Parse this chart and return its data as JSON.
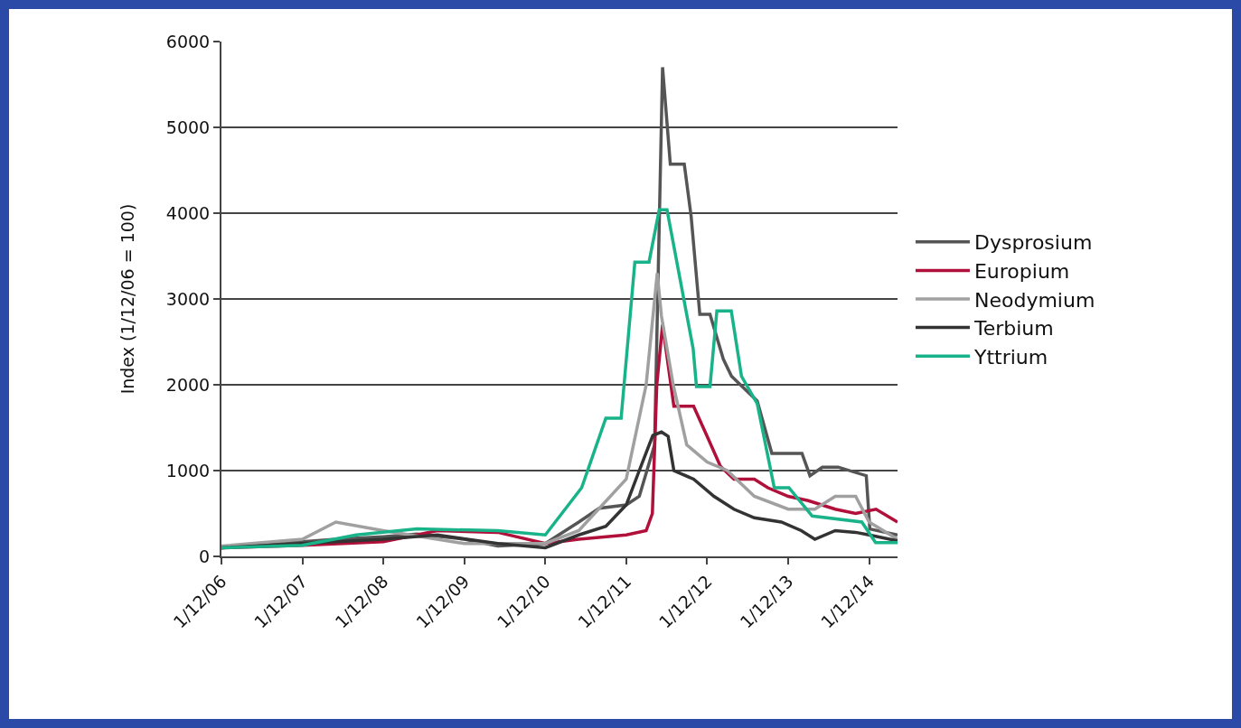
{
  "chart_data": {
    "type": "line",
    "ylabel": "Index (1/12/06 = 100)",
    "xlim": [
      "2006-01-12",
      "2014-05-20"
    ],
    "xticks": [
      {
        "value": "2006-01-12",
        "label": "1/12/06"
      },
      {
        "value": "2007-01-12",
        "label": "1/12/07"
      },
      {
        "value": "2008-01-12",
        "label": "1/12/08"
      },
      {
        "value": "2009-01-12",
        "label": "1/12/09"
      },
      {
        "value": "2010-01-12",
        "label": "1/12/10"
      },
      {
        "value": "2011-01-12",
        "label": "1/12/11"
      },
      {
        "value": "2012-01-12",
        "label": "1/12/12"
      },
      {
        "value": "2013-01-12",
        "label": "1/12/13"
      },
      {
        "value": "2014-01-12",
        "label": "1/12/14"
      }
    ],
    "ylim": [
      0,
      6000
    ],
    "yticks": [
      0,
      1000,
      2000,
      3000,
      4000,
      5000,
      6000
    ],
    "grid": "y",
    "legend": "right",
    "line_style": "solid",
    "marker": "none",
    "series": [
      {
        "name": "Dysprosium",
        "color": "#555555",
        "x": [
          "2006-01-12",
          "2007-01-12",
          "2007-06-12",
          "2008-01-12",
          "2008-06-12",
          "2009-01-12",
          "2009-06-12",
          "2010-01-12",
          "2010-06-12",
          "2010-09-12",
          "2011-01-12",
          "2011-03-12",
          "2011-05-20",
          "2011-06-25",
          "2011-07-30",
          "2011-10-01",
          "2011-11-01",
          "2011-12-10",
          "2012-01-25",
          "2012-03-25",
          "2012-05-01",
          "2012-08-25",
          "2012-10-30",
          "2013-03-15",
          "2013-04-20",
          "2013-06-15",
          "2013-08-25",
          "2013-12-30",
          "2014-01-15",
          "2014-05-20"
        ],
        "values": [
          100,
          170,
          200,
          230,
          260,
          200,
          120,
          150,
          400,
          560,
          600,
          700,
          1300,
          5700,
          4570,
          4570,
          3960,
          2820,
          2820,
          2300,
          2100,
          1810,
          1200,
          1200,
          940,
          1040,
          1040,
          940,
          320,
          250
        ]
      },
      {
        "name": "Europium",
        "color": "#b0103a",
        "x": [
          "2006-01-12",
          "2007-01-12",
          "2008-01-12",
          "2008-09-12",
          "2009-06-12",
          "2010-01-12",
          "2010-06-12",
          "2011-01-12",
          "2011-04-12",
          "2011-05-10",
          "2011-05-30",
          "2011-06-25",
          "2011-08-15",
          "2011-11-12",
          "2012-01-12",
          "2012-03-12",
          "2012-05-12",
          "2012-08-12",
          "2012-10-12",
          "2013-01-12",
          "2013-04-12",
          "2013-08-12",
          "2013-11-12",
          "2014-02-12",
          "2014-05-20"
        ],
        "values": [
          100,
          130,
          170,
          300,
          280,
          150,
          200,
          250,
          300,
          500,
          2000,
          2700,
          1750,
          1750,
          1400,
          1050,
          900,
          900,
          800,
          700,
          650,
          550,
          500,
          550,
          400
        ]
      },
      {
        "name": "Neodymium",
        "color": "#a0a0a0",
        "x": [
          "2006-01-12",
          "2007-01-12",
          "2007-06-12",
          "2008-01-12",
          "2009-01-12",
          "2010-01-12",
          "2010-06-12",
          "2011-01-12",
          "2011-04-12",
          "2011-06-01",
          "2011-06-20",
          "2011-08-12",
          "2011-10-12",
          "2012-01-12",
          "2012-04-12",
          "2012-08-12",
          "2013-01-12",
          "2013-05-12",
          "2013-08-12",
          "2013-11-12",
          "2014-01-12",
          "2014-05-20"
        ],
        "values": [
          120,
          200,
          400,
          300,
          150,
          150,
          300,
          900,
          2000,
          3300,
          2800,
          2000,
          1300,
          1100,
          1000,
          700,
          550,
          550,
          700,
          700,
          400,
          200
        ]
      },
      {
        "name": "Terbium",
        "color": "#333333",
        "x": [
          "2006-01-12",
          "2007-01-12",
          "2008-01-12",
          "2008-09-12",
          "2009-06-12",
          "2010-01-12",
          "2010-06-12",
          "2010-10-12",
          "2011-01-12",
          "2011-03-12",
          "2011-05-12",
          "2011-06-20",
          "2011-07-20",
          "2011-08-15",
          "2011-11-12",
          "2012-02-12",
          "2012-05-12",
          "2012-08-12",
          "2012-12-12",
          "2013-03-12",
          "2013-05-12",
          "2013-08-12",
          "2013-11-12",
          "2014-01-12",
          "2014-05-20"
        ],
        "values": [
          100,
          150,
          200,
          250,
          150,
          100,
          250,
          350,
          600,
          1000,
          1410,
          1450,
          1400,
          1000,
          900,
          700,
          550,
          450,
          400,
          300,
          200,
          300,
          280,
          250,
          180
        ]
      },
      {
        "name": "Yttrium",
        "color": "#19b38a",
        "x": [
          "2006-01-12",
          "2007-01-12",
          "2007-09-12",
          "2008-06-12",
          "2009-06-12",
          "2010-01-12",
          "2010-06-25",
          "2010-10-12",
          "2010-12-20",
          "2011-02-20",
          "2011-04-25",
          "2011-06-10",
          "2011-07-15",
          "2011-11-10",
          "2011-11-25",
          "2012-01-25",
          "2012-02-25",
          "2012-04-30",
          "2012-06-15",
          "2012-08-25",
          "2012-11-10",
          "2013-01-15",
          "2013-04-30",
          "2013-12-10",
          "2014-02-10",
          "2014-05-20"
        ],
        "values": [
          100,
          130,
          250,
          320,
          300,
          250,
          800,
          1610,
          1610,
          3430,
          3430,
          4040,
          4040,
          2420,
          1980,
          1980,
          2860,
          2860,
          2100,
          1780,
          800,
          800,
          470,
          400,
          160,
          160
        ]
      }
    ]
  }
}
